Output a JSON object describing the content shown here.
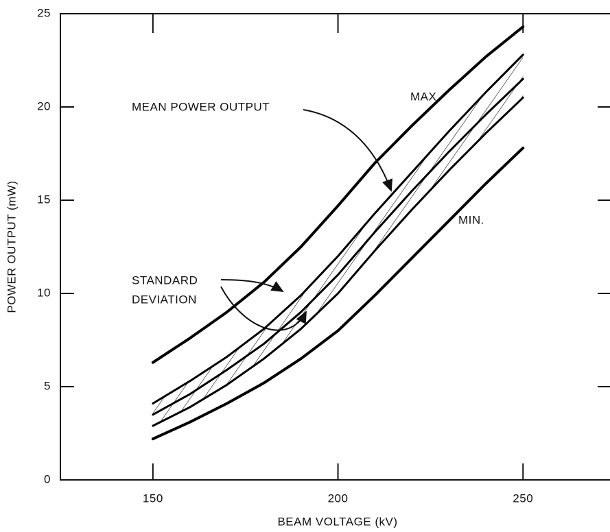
{
  "chart_data": {
    "type": "line",
    "xlabel": "BEAM VOLTAGE (kV)",
    "ylabel": "POWER OUTPUT (mW)",
    "x": [
      150,
      160,
      170,
      180,
      190,
      200,
      210,
      220,
      230,
      240,
      250
    ],
    "series": [
      {
        "name": "MAX.",
        "color": "#000000",
        "values": [
          6.3,
          7.6,
          9.0,
          10.6,
          12.5,
          14.7,
          17.0,
          19.0,
          20.9,
          22.7,
          24.3
        ]
      },
      {
        "color": "#000000",
        "values": [
          4.1,
          5.3,
          6.6,
          8.1,
          9.9,
          12.0,
          14.3,
          16.5,
          18.7,
          20.8,
          22.8
        ]
      },
      {
        "color": "#000000",
        "values": [
          3.5,
          4.6,
          5.9,
          7.3,
          9.0,
          11.0,
          13.3,
          15.5,
          17.6,
          19.6,
          21.5
        ]
      },
      {
        "color": "#000000",
        "values": [
          2.9,
          3.9,
          5.1,
          6.5,
          8.1,
          10.0,
          12.3,
          14.5,
          16.6,
          18.6,
          20.5
        ]
      },
      {
        "name": "MIN.",
        "color": "#000000",
        "values": [
          2.2,
          3.1,
          4.1,
          5.2,
          6.5,
          8.0,
          9.9,
          11.9,
          13.9,
          15.9,
          17.8
        ]
      }
    ],
    "annotations": [
      "MEAN POWER OUTPUT",
      "STANDARD",
      "DEVIATION"
    ],
    "xlim": [
      125,
      273.5
    ],
    "ylim": [
      0,
      25
    ],
    "xticks": [
      150,
      200,
      250
    ],
    "yticks": [
      0,
      5,
      10,
      15,
      20,
      25
    ]
  }
}
